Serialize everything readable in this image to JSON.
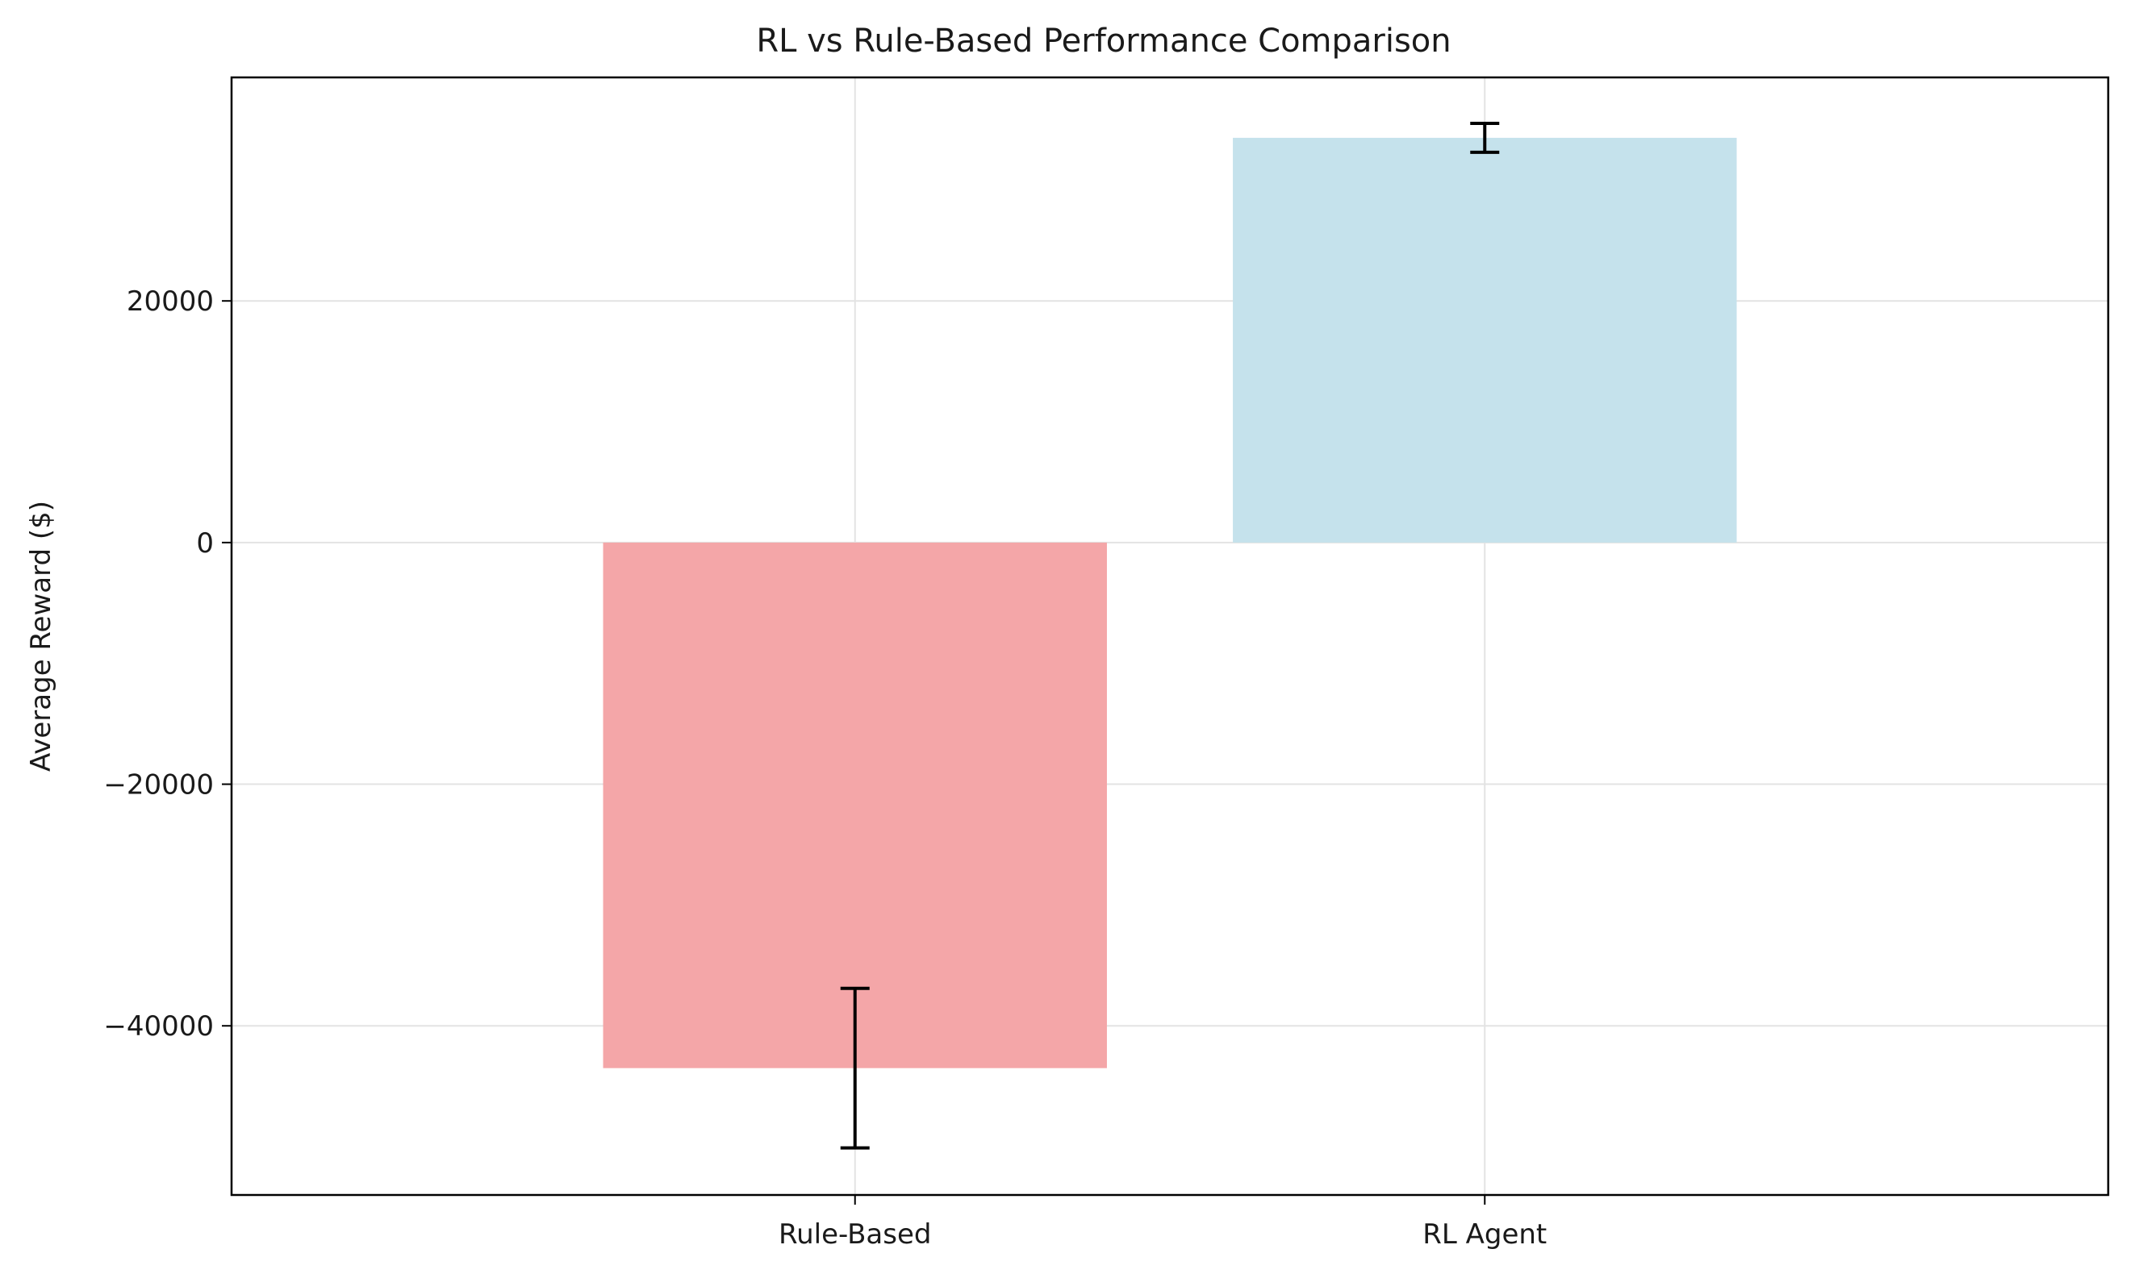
{
  "chart_data": {
    "type": "bar",
    "title": "RL vs Rule-Based Performance Comparison",
    "xlabel": "",
    "ylabel": "Average Reward ($)",
    "categories": [
      "Rule-Based",
      "RL Agent"
    ],
    "values": [
      -43500,
      33500
    ],
    "error": [
      6600,
      1200
    ],
    "colors": [
      "#f4a6a8",
      "#c5e2ec"
    ],
    "error_color": "#000000",
    "ylim": [
      -54000,
      38500
    ],
    "yticks": [
      -40000,
      -20000,
      0,
      20000
    ],
    "ytick_labels": [
      "−40000",
      "−20000",
      "0",
      "20000"
    ],
    "grid": true
  }
}
